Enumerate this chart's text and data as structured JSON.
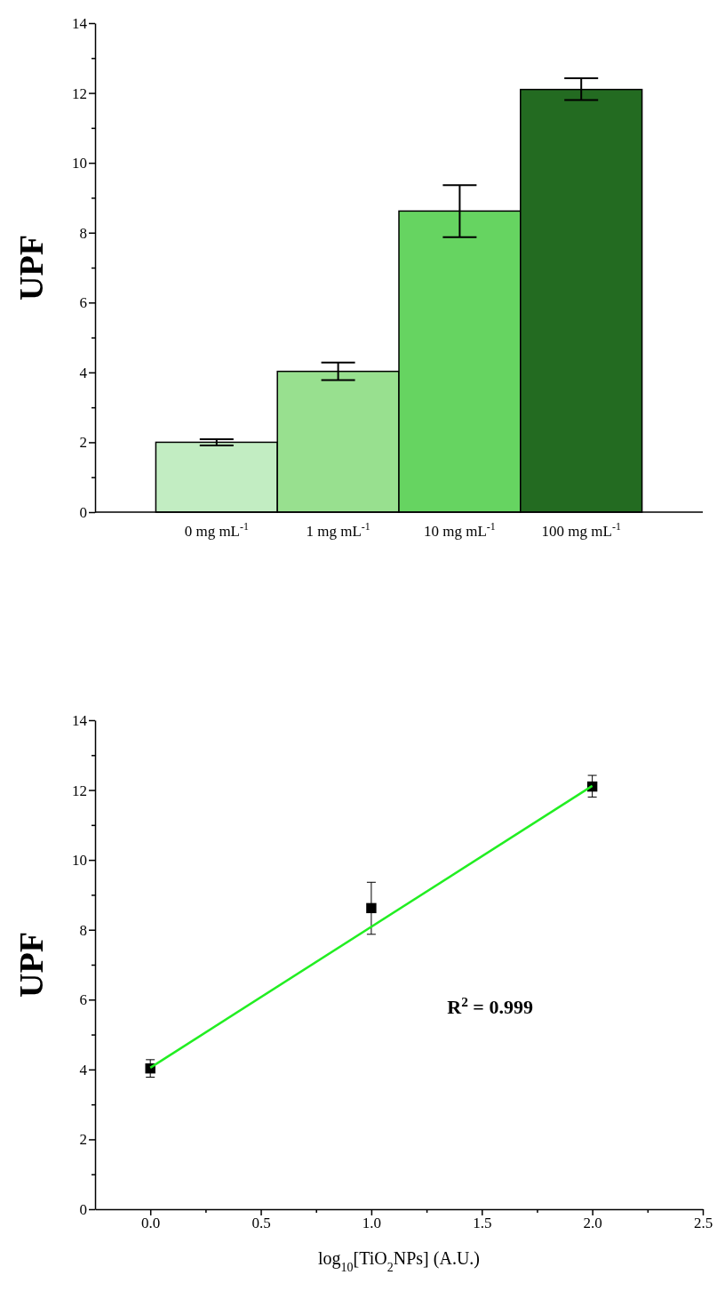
{
  "chart_data": [
    {
      "type": "bar",
      "ylabel": "UPF",
      "categories": [
        "0 mg mL$^{-1}$",
        "1 mg mL$^{-1}$",
        "10 mg mL$^{-1}$",
        "100 mg mL$^{-1}$"
      ],
      "values": [
        2.0,
        4.03,
        8.62,
        12.1
      ],
      "errors": [
        [
          1.91,
          2.09
        ],
        [
          3.78,
          4.28
        ],
        [
          7.87,
          9.36
        ],
        [
          11.8,
          12.42
        ]
      ],
      "colors": [
        "#c2edc2",
        "#98e08f",
        "#66d461",
        "#236b21"
      ],
      "ylim": [
        0,
        14
      ],
      "yticks": [
        0,
        {
          "value": 1,
          "label": null
        },
        2,
        {
          "value": 3,
          "label": null
        },
        4,
        {
          "value": 5,
          "label": null
        },
        6,
        {
          "value": 7,
          "label": null
        },
        8,
        {
          "value": 9,
          "label": null
        },
        10,
        {
          "value": 11,
          "label": null
        },
        12,
        {
          "value": 13,
          "label": null
        },
        14
      ],
      "grid": false
    },
    {
      "type": "scatter",
      "ylabel": "UPF",
      "xlabel": "log$_{10}$[TiO$_{2}$NPs] (A.U.)",
      "series": [
        {
          "type": "scatter",
          "marker": "square",
          "color": "#000000",
          "x": [
            0,
            1,
            2
          ],
          "values": [
            4.03,
            8.62,
            12.1
          ],
          "errors": [
            [
              3.78,
              4.28
            ],
            [
              7.87,
              9.36
            ],
            [
              11.8,
              12.42
            ]
          ]
        },
        {
          "type": "line",
          "color": "#22ee22",
          "x": [
            0,
            2
          ],
          "values": [
            4.05,
            12.12
          ]
        }
      ],
      "annotations": [
        "R$^{2}$ = 0.999"
      ],
      "xlim": [
        -0.25,
        2.5
      ],
      "xticks": [
        {
          "value": 0,
          "label": "0.0"
        },
        {
          "value": 0.25,
          "label": null
        },
        {
          "value": 0.5,
          "label": "0.5"
        },
        {
          "value": 0.75,
          "label": null
        },
        {
          "value": 1,
          "label": "1.0"
        },
        {
          "value": 1.25,
          "label": null
        },
        {
          "value": 1.5,
          "label": "1.5"
        },
        {
          "value": 1.75,
          "label": null
        },
        {
          "value": 2,
          "label": "2.0"
        },
        {
          "value": 2.25,
          "label": null
        },
        {
          "value": 2.5,
          "label": "2.5"
        }
      ],
      "ylim": [
        0,
        14
      ],
      "yticks": [
        0,
        {
          "value": 1,
          "label": null
        },
        2,
        {
          "value": 3,
          "label": null
        },
        4,
        {
          "value": 5,
          "label": null
        },
        6,
        {
          "value": 7,
          "label": null
        },
        8,
        {
          "value": 9,
          "label": null
        },
        10,
        {
          "value": 11,
          "label": null
        },
        12,
        {
          "value": 13,
          "label": null
        },
        14
      ],
      "grid": false
    }
  ]
}
